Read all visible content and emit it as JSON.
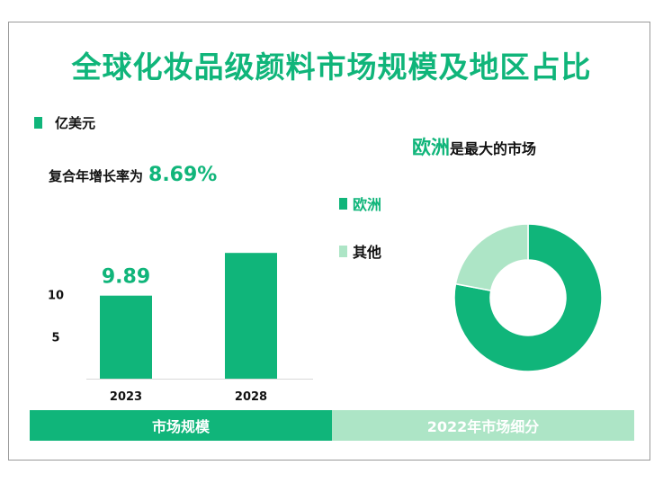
{
  "title": "全球化妆品级颜料市场规模及地区占比",
  "colors": {
    "primary": "#10b57a",
    "secondary": "#ade5c6"
  },
  "bar_legend": {
    "label": "亿美元"
  },
  "cagr": {
    "prefix": "复合年增长率为",
    "value": "8.69%"
  },
  "pie_title": {
    "highlight": "欧洲",
    "rest": "是最大的市场"
  },
  "footer": {
    "left": "市场规模",
    "right": "2022年市场细分"
  },
  "chart_data": [
    {
      "type": "bar",
      "categories": [
        "2023",
        "2028"
      ],
      "values": [
        9.89,
        14.98
      ],
      "data_labels": [
        "9.89",
        ""
      ],
      "yticks": [
        5,
        10
      ],
      "ylim": [
        0,
        18
      ],
      "grid": false,
      "legend": [
        {
          "name": "亿美元",
          "color": "#10b57a"
        }
      ]
    },
    {
      "type": "pie",
      "donut": true,
      "slices": [
        {
          "name": "欧洲",
          "value": 78,
          "color": "#10b57a"
        },
        {
          "name": "其他",
          "value": 22,
          "color": "#ade5c6"
        }
      ],
      "legend_placement": "left"
    }
  ]
}
